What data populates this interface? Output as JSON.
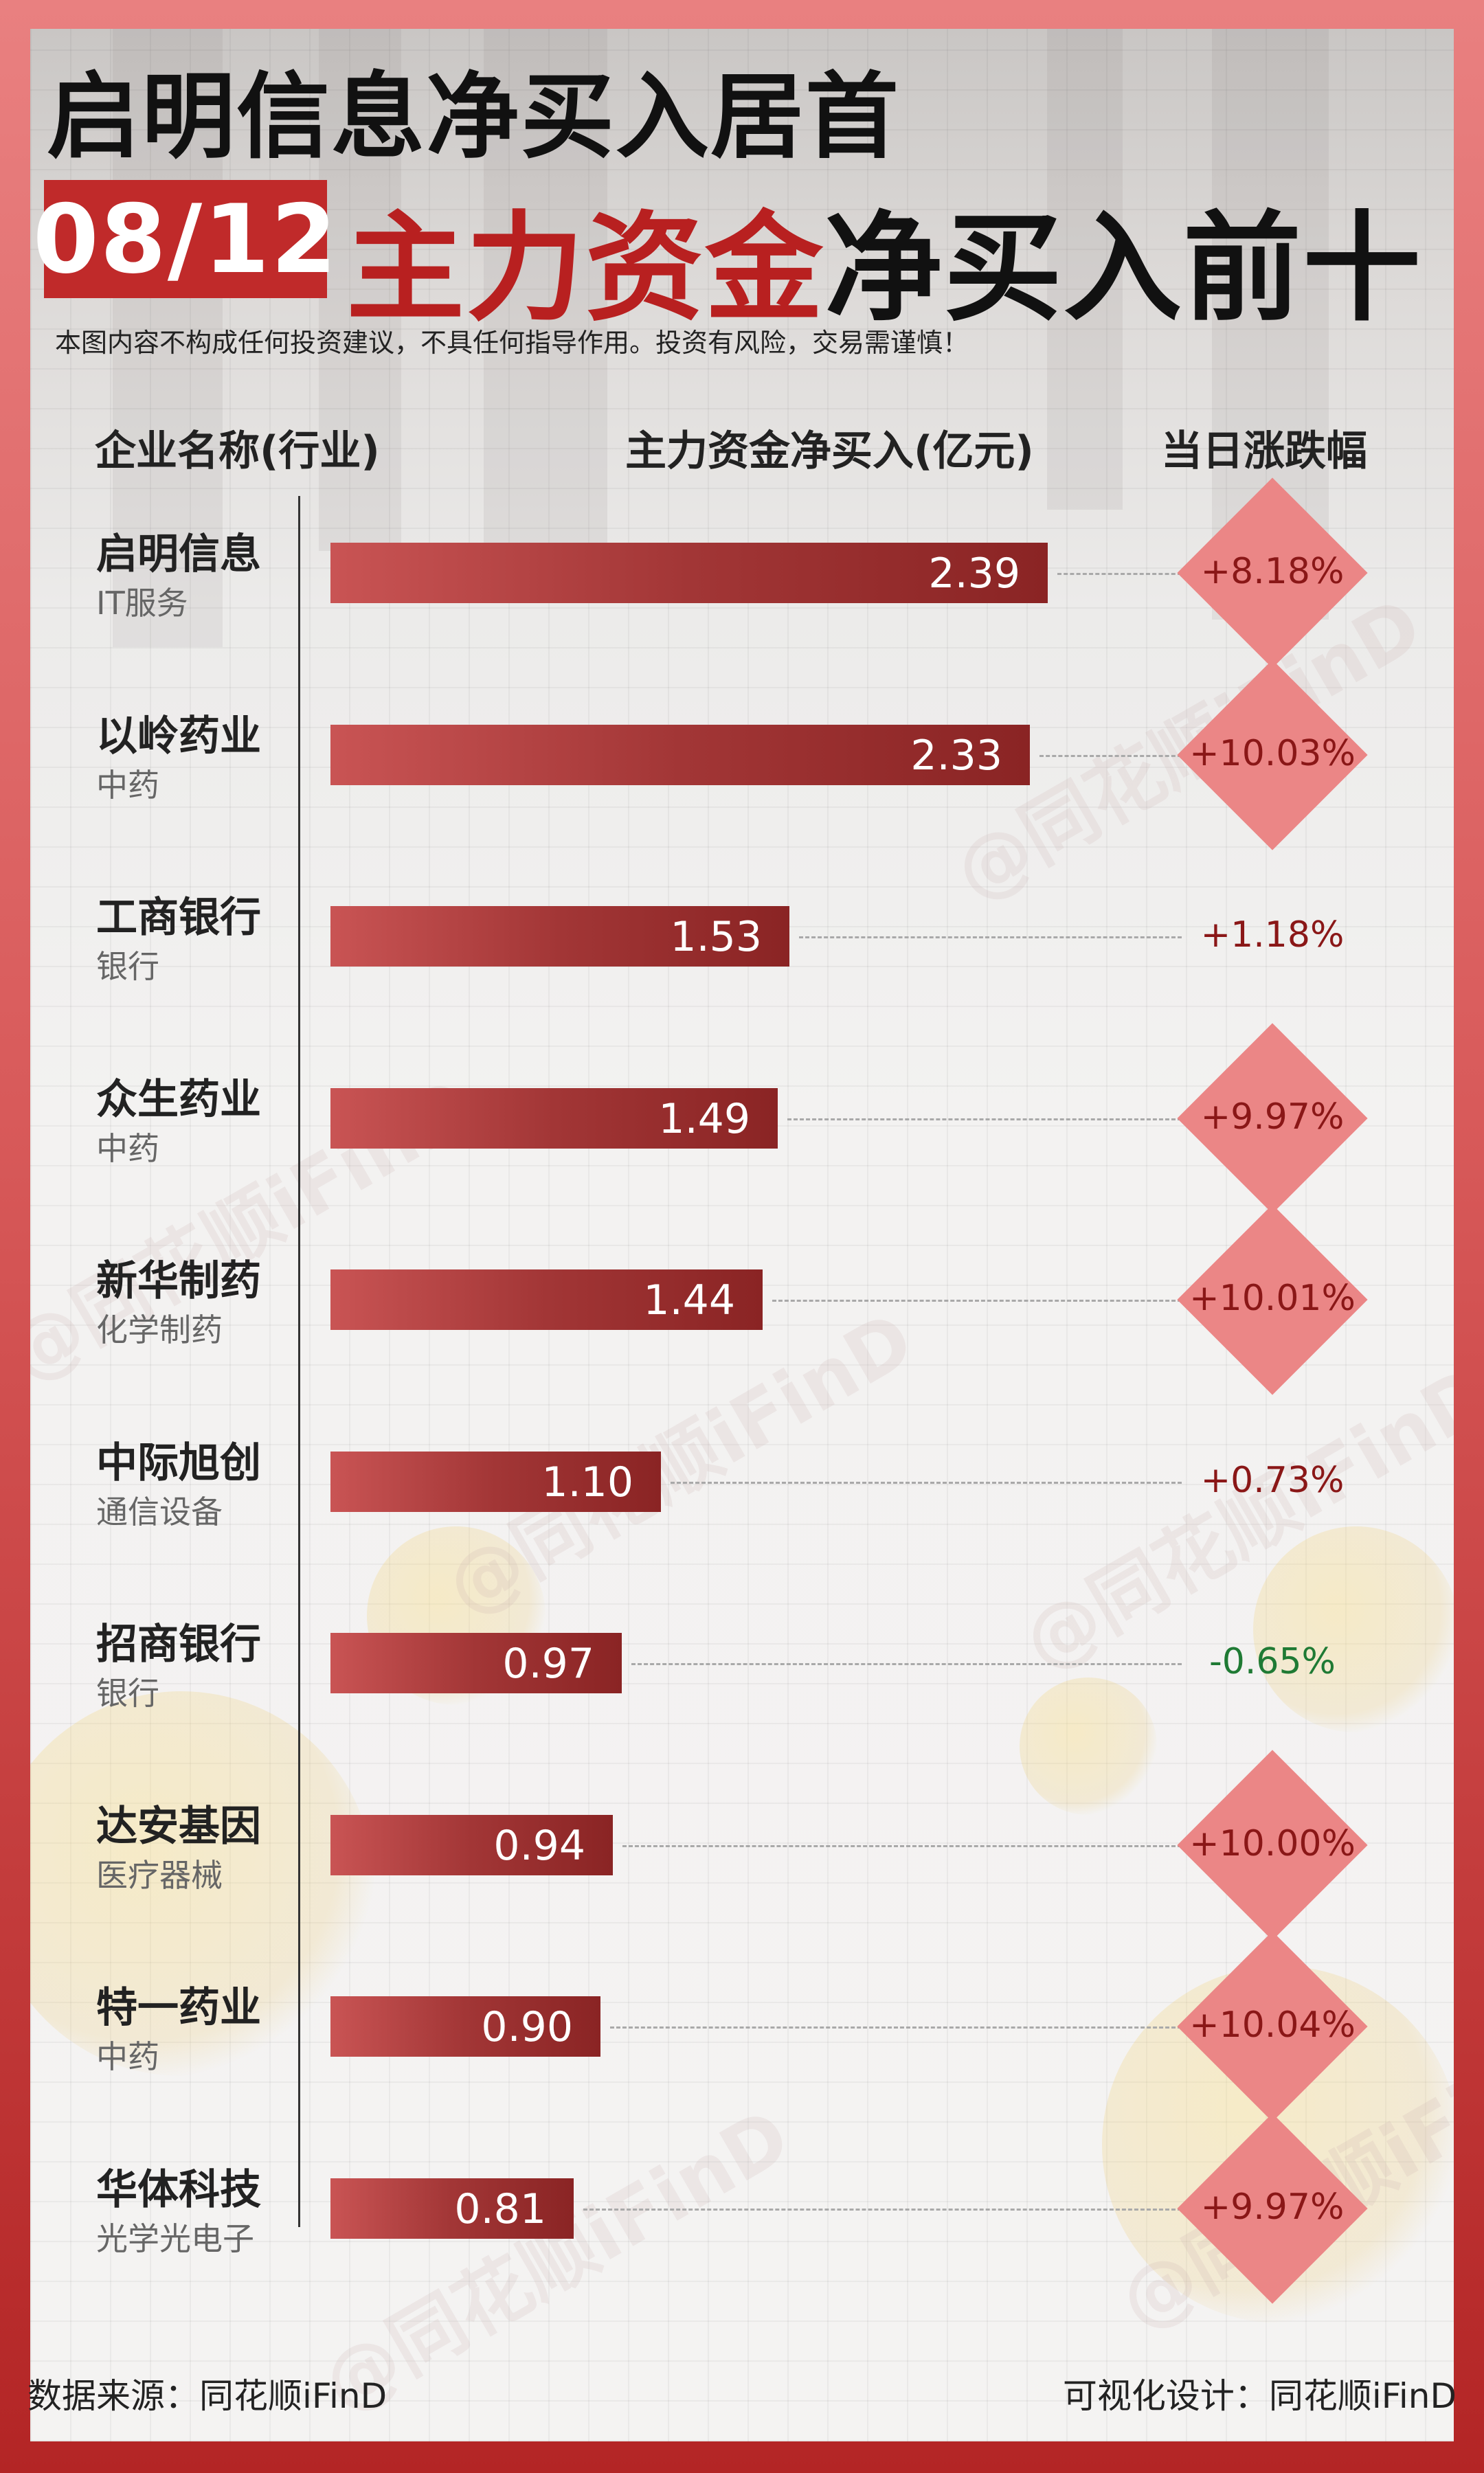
{
  "title": {
    "line1": "启明信息净买入居首",
    "date": "08/12",
    "line2_red": "主力资金",
    "line2_black": "净买入前十"
  },
  "disclaimer": "本图内容不构成任何投资建议，不具任何指导作用。投资有风险，交易需谨慎！",
  "headers": {
    "company": "企业名称(行业)",
    "value": "主力资金净买入(亿元)",
    "change": "当日涨跌幅"
  },
  "watermark": "@同花顺iFinD",
  "footer": {
    "source": "数据来源：同花顺iFinD",
    "design": "可视化设计：同花顺iFinD"
  },
  "colors": {
    "accent_red": "#c02a2a",
    "bar": "#a23636",
    "diamond": "#eb8686",
    "up": "#8a1717",
    "down": "#1f7a34"
  },
  "chart_data": {
    "type": "bar",
    "orientation": "horizontal",
    "xlim": [
      0,
      2.39
    ],
    "categories": [
      "启明信息",
      "以岭药业",
      "工商银行",
      "众生药业",
      "新华制药",
      "中际旭创",
      "招商银行",
      "达安基因",
      "特一药业",
      "华体科技"
    ],
    "rows": [
      {
        "name": "启明信息",
        "industry": "IT服务",
        "value": 2.39,
        "value_label": "2.39",
        "change": "+8.18%",
        "limit_up": true
      },
      {
        "name": "以岭药业",
        "industry": "中药",
        "value": 2.33,
        "value_label": "2.33",
        "change": "+10.03%",
        "limit_up": true
      },
      {
        "name": "工商银行",
        "industry": "银行",
        "value": 1.53,
        "value_label": "1.53",
        "change": "+1.18%",
        "limit_up": false
      },
      {
        "name": "众生药业",
        "industry": "中药",
        "value": 1.49,
        "value_label": "1.49",
        "change": "+9.97%",
        "limit_up": true
      },
      {
        "name": "新华制药",
        "industry": "化学制药",
        "value": 1.44,
        "value_label": "1.44",
        "change": "+10.01%",
        "limit_up": true
      },
      {
        "name": "中际旭创",
        "industry": "通信设备",
        "value": 1.1,
        "value_label": "1.10",
        "change": "+0.73%",
        "limit_up": false
      },
      {
        "name": "招商银行",
        "industry": "银行",
        "value": 0.97,
        "value_label": "0.97",
        "change": "-0.65%",
        "limit_up": false
      },
      {
        "name": "达安基因",
        "industry": "医疗器械",
        "value": 0.94,
        "value_label": "0.94",
        "change": "+10.00%",
        "limit_up": true
      },
      {
        "name": "特一药业",
        "industry": "中药",
        "value": 0.9,
        "value_label": "0.90",
        "change": "+10.04%",
        "limit_up": true
      },
      {
        "name": "华体科技",
        "industry": "光学光电子",
        "value": 0.81,
        "value_label": "0.81",
        "change": "+9.97%",
        "limit_up": true
      }
    ]
  }
}
